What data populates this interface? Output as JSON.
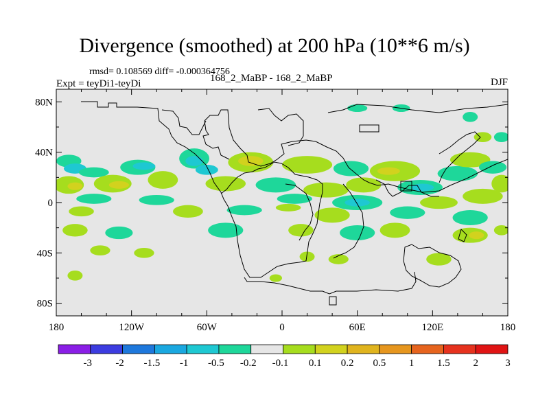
{
  "chart_data": {
    "type": "heatmap",
    "title": "Divergence (smoothed) at 200 hPa (10**6 m/s)",
    "stats": "rmsd= 0.108569 diff= -0.000364756",
    "left_label": "Expt = teyDi1-teyDi",
    "center_label": "168_2_MaBP - 168_2_MaBP",
    "right_label": "DJF",
    "x_ticks": [
      "180",
      "120W",
      "60W",
      "0",
      "60E",
      "120E",
      "180"
    ],
    "x_tick_values": [
      -180,
      -120,
      -60,
      0,
      60,
      120,
      180
    ],
    "y_ticks": [
      "80N",
      "40N",
      "0",
      "40S",
      "80S"
    ],
    "y_tick_values": [
      80,
      40,
      0,
      -40,
      -80
    ],
    "xlim": [
      -180,
      180
    ],
    "ylim": [
      -90,
      90
    ],
    "colorbar": {
      "labels": [
        "-3",
        "-2",
        "-1.5",
        "-1",
        "-0.5",
        "-0.2",
        "-0.1",
        "0.1",
        "0.2",
        "0.5",
        "1",
        "1.5",
        "2",
        "3"
      ],
      "colors": [
        "#8a1ee6",
        "#3c3ce0",
        "#1e78dc",
        "#1aa8e0",
        "#1ec8d2",
        "#1ed79a",
        "#e6e6e6",
        "#a6dd1e",
        "#d2d21e",
        "#e0b41e",
        "#e6961e",
        "#e6641e",
        "#e6321e",
        "#e01414"
      ]
    },
    "features": [
      {
        "lon": -170,
        "lat": 33,
        "rx": 10,
        "ry": 5,
        "cls": 5
      },
      {
        "lon": -165,
        "lat": 27,
        "rx": 9,
        "ry": 4,
        "cls": 4
      },
      {
        "lon": -150,
        "lat": 24,
        "rx": 12,
        "ry": 4,
        "cls": 5
      },
      {
        "lon": -115,
        "lat": 28,
        "rx": 14,
        "ry": 6,
        "cls": 5
      },
      {
        "lon": -110,
        "lat": 29,
        "rx": 9,
        "ry": 3,
        "cls": 4
      },
      {
        "lon": -70,
        "lat": 35,
        "rx": 12,
        "ry": 8,
        "cls": 5
      },
      {
        "lon": -70,
        "lat": 33,
        "rx": 7,
        "ry": 4,
        "cls": 4
      },
      {
        "lon": -60,
        "lat": 26,
        "rx": 9,
        "ry": 4,
        "cls": 4
      },
      {
        "lon": -25,
        "lat": 32,
        "rx": 18,
        "ry": 8,
        "cls": 7
      },
      {
        "lon": -25,
        "lat": 33,
        "rx": 10,
        "ry": 4,
        "cls": 8
      },
      {
        "lon": 20,
        "lat": 30,
        "rx": 20,
        "ry": 7,
        "cls": 7
      },
      {
        "lon": 55,
        "lat": 27,
        "rx": 14,
        "ry": 6,
        "cls": 5
      },
      {
        "lon": 90,
        "lat": 25,
        "rx": 20,
        "ry": 8,
        "cls": 7
      },
      {
        "lon": 85,
        "lat": 25,
        "rx": 9,
        "ry": 3,
        "cls": 8
      },
      {
        "lon": 140,
        "lat": 23,
        "rx": 16,
        "ry": 6,
        "cls": 5
      },
      {
        "lon": 150,
        "lat": 34,
        "rx": 16,
        "ry": 6,
        "cls": 7
      },
      {
        "lon": 168,
        "lat": 28,
        "rx": 11,
        "ry": 5,
        "cls": 5
      },
      {
        "lon": 175,
        "lat": 15,
        "rx": 8,
        "ry": 7,
        "cls": 7
      },
      {
        "lon": -170,
        "lat": 14,
        "rx": 12,
        "ry": 7,
        "cls": 7
      },
      {
        "lon": -165,
        "lat": 13,
        "rx": 6,
        "ry": 3,
        "cls": 8
      },
      {
        "lon": -135,
        "lat": 15,
        "rx": 15,
        "ry": 7,
        "cls": 7
      },
      {
        "lon": -130,
        "lat": 14,
        "rx": 8,
        "ry": 3,
        "cls": 8
      },
      {
        "lon": -95,
        "lat": 18,
        "rx": 12,
        "ry": 7,
        "cls": 7
      },
      {
        "lon": -45,
        "lat": 15,
        "rx": 16,
        "ry": 6,
        "cls": 7
      },
      {
        "lon": -5,
        "lat": 14,
        "rx": 16,
        "ry": 6,
        "cls": 5
      },
      {
        "lon": 35,
        "lat": 10,
        "rx": 18,
        "ry": 6,
        "cls": 7
      },
      {
        "lon": 65,
        "lat": 14,
        "rx": 14,
        "ry": 6,
        "cls": 7
      },
      {
        "lon": 110,
        "lat": 12,
        "rx": 18,
        "ry": 6,
        "cls": 5
      },
      {
        "lon": 112,
        "lat": 12,
        "rx": 9,
        "ry": 3,
        "cls": 4
      },
      {
        "lon": 160,
        "lat": 5,
        "rx": 16,
        "ry": 6,
        "cls": 7
      },
      {
        "lon": -150,
        "lat": 3,
        "rx": 14,
        "ry": 4,
        "cls": 5
      },
      {
        "lon": -100,
        "lat": 2,
        "rx": 14,
        "ry": 4,
        "cls": 5
      },
      {
        "lon": 10,
        "lat": 3,
        "rx": 14,
        "ry": 4,
        "cls": 5
      },
      {
        "lon": 60,
        "lat": 0,
        "rx": 20,
        "ry": 6,
        "cls": 5
      },
      {
        "lon": 60,
        "lat": 0,
        "rx": 10,
        "ry": 3,
        "cls": 4
      },
      {
        "lon": 125,
        "lat": 0,
        "rx": 15,
        "ry": 5,
        "cls": 7
      },
      {
        "lon": -160,
        "lat": -7,
        "rx": 10,
        "ry": 4,
        "cls": 7
      },
      {
        "lon": -75,
        "lat": -7,
        "rx": 12,
        "ry": 5,
        "cls": 7
      },
      {
        "lon": -30,
        "lat": -6,
        "rx": 14,
        "ry": 4,
        "cls": 5
      },
      {
        "lon": 5,
        "lat": -4,
        "rx": 10,
        "ry": 3,
        "cls": 7
      },
      {
        "lon": 40,
        "lat": -10,
        "rx": 14,
        "ry": 6,
        "cls": 7
      },
      {
        "lon": 100,
        "lat": -8,
        "rx": 14,
        "ry": 5,
        "cls": 5
      },
      {
        "lon": 150,
        "lat": -12,
        "rx": 14,
        "ry": 6,
        "cls": 5
      },
      {
        "lon": -165,
        "lat": -22,
        "rx": 10,
        "ry": 5,
        "cls": 7
      },
      {
        "lon": -130,
        "lat": -24,
        "rx": 11,
        "ry": 5,
        "cls": 5
      },
      {
        "lon": -45,
        "lat": -22,
        "rx": 14,
        "ry": 6,
        "cls": 5
      },
      {
        "lon": 15,
        "lat": -22,
        "rx": 10,
        "ry": 5,
        "cls": 7
      },
      {
        "lon": 60,
        "lat": -24,
        "rx": 14,
        "ry": 6,
        "cls": 5
      },
      {
        "lon": 90,
        "lat": -22,
        "rx": 12,
        "ry": 6,
        "cls": 7
      },
      {
        "lon": 150,
        "lat": -26,
        "rx": 14,
        "ry": 6,
        "cls": 7
      },
      {
        "lon": 155,
        "lat": -26,
        "rx": 6,
        "ry": 3,
        "cls": 8
      },
      {
        "lon": 175,
        "lat": -22,
        "rx": 6,
        "ry": 4,
        "cls": 7
      },
      {
        "lon": -145,
        "lat": -38,
        "rx": 8,
        "ry": 4,
        "cls": 7
      },
      {
        "lon": -110,
        "lat": -40,
        "rx": 8,
        "ry": 4,
        "cls": 7
      },
      {
        "lon": 125,
        "lat": -45,
        "rx": 10,
        "ry": 5,
        "cls": 7
      },
      {
        "lon": 45,
        "lat": -45,
        "rx": 8,
        "ry": 4,
        "cls": 7
      },
      {
        "lon": 20,
        "lat": -43,
        "rx": 6,
        "ry": 4,
        "cls": 7
      },
      {
        "lon": -165,
        "lat": -58,
        "rx": 6,
        "ry": 4,
        "cls": 7
      },
      {
        "lon": -5,
        "lat": -60,
        "rx": 5,
        "ry": 3,
        "cls": 7
      },
      {
        "lon": 60,
        "lat": 75,
        "rx": 8,
        "ry": 3,
        "cls": 5
      },
      {
        "lon": 95,
        "lat": 75,
        "rx": 7,
        "ry": 3,
        "cls": 5
      },
      {
        "lon": 150,
        "lat": 68,
        "rx": 6,
        "ry": 4,
        "cls": 5
      },
      {
        "lon": 175,
        "lat": 52,
        "rx": 6,
        "ry": 4,
        "cls": 5
      },
      {
        "lon": 160,
        "lat": 52,
        "rx": 7,
        "ry": 4,
        "cls": 7
      }
    ]
  }
}
